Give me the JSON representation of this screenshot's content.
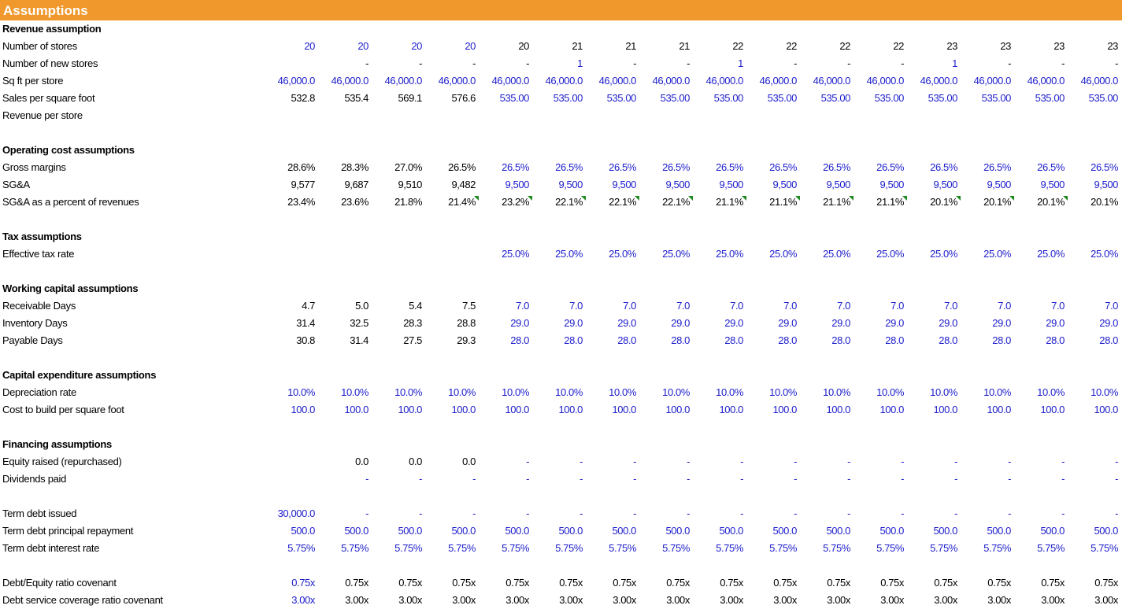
{
  "title": "Assumptions",
  "colors": {
    "header": "#f0982b",
    "input": "#1c1ccc",
    "comment_flag": "#1f8a1f"
  },
  "rows": [
    {
      "label": "Revenue assumption",
      "section": true
    },
    {
      "label": "Number of stores",
      "values": [
        "20",
        "20",
        "20",
        "20",
        "20",
        "21",
        "21",
        "21",
        "22",
        "22",
        "22",
        "22",
        "23",
        "23",
        "23",
        "23"
      ],
      "colors": [
        "b",
        "b",
        "b",
        "b",
        "k",
        "k",
        "k",
        "k",
        "k",
        "k",
        "k",
        "k",
        "k",
        "k",
        "k",
        "k"
      ]
    },
    {
      "label": "Number of new stores",
      "values": [
        "",
        "-",
        "-",
        "-",
        "-",
        "1",
        "-",
        "-",
        "1",
        "-",
        "-",
        "-",
        "1",
        "-",
        "-",
        "-"
      ],
      "colors": [
        "k",
        "k",
        "k",
        "k",
        "k",
        "b",
        "k",
        "k",
        "b",
        "k",
        "k",
        "k",
        "b",
        "k",
        "k",
        "k"
      ]
    },
    {
      "label": "Sq ft per store",
      "values": [
        "46,000.0",
        "46,000.0",
        "46,000.0",
        "46,000.0",
        "46,000.0",
        "46,000.0",
        "46,000.0",
        "46,000.0",
        "46,000.0",
        "46,000.0",
        "46,000.0",
        "46,000.0",
        "46,000.0",
        "46,000.0",
        "46,000.0",
        "46,000.0"
      ],
      "colors": [
        "b",
        "b",
        "b",
        "b",
        "b",
        "b",
        "b",
        "b",
        "b",
        "b",
        "b",
        "b",
        "b",
        "b",
        "b",
        "b"
      ]
    },
    {
      "label": "Sales per square foot",
      "values": [
        "532.8",
        "535.4",
        "569.1",
        "576.6",
        "535.00",
        "535.00",
        "535.00",
        "535.00",
        "535.00",
        "535.00",
        "535.00",
        "535.00",
        "535.00",
        "535.00",
        "535.00",
        "535.00"
      ],
      "colors": [
        "k",
        "k",
        "k",
        "k",
        "b",
        "b",
        "b",
        "b",
        "b",
        "b",
        "b",
        "b",
        "b",
        "b",
        "b",
        "b"
      ]
    },
    {
      "label": "Revenue per store"
    },
    {
      "label": ""
    },
    {
      "label": "Operating cost assumptions",
      "section": true
    },
    {
      "label": "Gross margins",
      "values": [
        "28.6%",
        "28.3%",
        "27.0%",
        "26.5%",
        "26.5%",
        "26.5%",
        "26.5%",
        "26.5%",
        "26.5%",
        "26.5%",
        "26.5%",
        "26.5%",
        "26.5%",
        "26.5%",
        "26.5%",
        "26.5%"
      ],
      "colors": [
        "k",
        "k",
        "k",
        "k",
        "b",
        "b",
        "b",
        "b",
        "b",
        "b",
        "b",
        "b",
        "b",
        "b",
        "b",
        "b"
      ]
    },
    {
      "label": "SG&A",
      "values": [
        "9,577",
        "9,687",
        "9,510",
        "9,482",
        "9,500",
        "9,500",
        "9,500",
        "9,500",
        "9,500",
        "9,500",
        "9,500",
        "9,500",
        "9,500",
        "9,500",
        "9,500",
        "9,500"
      ],
      "colors": [
        "k",
        "k",
        "k",
        "k",
        "b",
        "b",
        "b",
        "b",
        "b",
        "b",
        "b",
        "b",
        "b",
        "b",
        "b",
        "b"
      ]
    },
    {
      "label": "SG&A as a percent of revenues",
      "values": [
        "23.4%",
        "23.6%",
        "21.8%",
        "21.4%",
        "23.2%",
        "22.1%",
        "22.1%",
        "22.1%",
        "21.1%",
        "21.1%",
        "21.1%",
        "21.1%",
        "20.1%",
        "20.1%",
        "20.1%",
        "20.1%"
      ],
      "colors": [
        "k",
        "k",
        "k",
        "k",
        "k",
        "k",
        "k",
        "k",
        "k",
        "k",
        "k",
        "k",
        "k",
        "k",
        "k",
        "k"
      ],
      "flags": [
        false,
        false,
        false,
        true,
        true,
        true,
        true,
        true,
        true,
        true,
        true,
        true,
        true,
        true,
        true,
        false
      ]
    },
    {
      "label": ""
    },
    {
      "label": "Tax assumptions",
      "section": true
    },
    {
      "label": "Effective tax rate",
      "values": [
        "",
        "",
        "",
        "",
        "25.0%",
        "25.0%",
        "25.0%",
        "25.0%",
        "25.0%",
        "25.0%",
        "25.0%",
        "25.0%",
        "25.0%",
        "25.0%",
        "25.0%",
        "25.0%"
      ],
      "colors": [
        "b",
        "b",
        "b",
        "b",
        "b",
        "b",
        "b",
        "b",
        "b",
        "b",
        "b",
        "b",
        "b",
        "b",
        "b",
        "b"
      ]
    },
    {
      "label": ""
    },
    {
      "label": "Working capital assumptions",
      "section": true
    },
    {
      "label": "Receivable Days",
      "values": [
        "4.7",
        "5.0",
        "5.4",
        "7.5",
        "7.0",
        "7.0",
        "7.0",
        "7.0",
        "7.0",
        "7.0",
        "7.0",
        "7.0",
        "7.0",
        "7.0",
        "7.0",
        "7.0"
      ],
      "colors": [
        "k",
        "k",
        "k",
        "k",
        "b",
        "b",
        "b",
        "b",
        "b",
        "b",
        "b",
        "b",
        "b",
        "b",
        "b",
        "b"
      ]
    },
    {
      "label": "Inventory Days",
      "values": [
        "31.4",
        "32.5",
        "28.3",
        "28.8",
        "29.0",
        "29.0",
        "29.0",
        "29.0",
        "29.0",
        "29.0",
        "29.0",
        "29.0",
        "29.0",
        "29.0",
        "29.0",
        "29.0"
      ],
      "colors": [
        "k",
        "k",
        "k",
        "k",
        "b",
        "b",
        "b",
        "b",
        "b",
        "b",
        "b",
        "b",
        "b",
        "b",
        "b",
        "b"
      ]
    },
    {
      "label": "Payable Days",
      "values": [
        "30.8",
        "31.4",
        "27.5",
        "29.3",
        "28.0",
        "28.0",
        "28.0",
        "28.0",
        "28.0",
        "28.0",
        "28.0",
        "28.0",
        "28.0",
        "28.0",
        "28.0",
        "28.0"
      ],
      "colors": [
        "k",
        "k",
        "k",
        "k",
        "b",
        "b",
        "b",
        "b",
        "b",
        "b",
        "b",
        "b",
        "b",
        "b",
        "b",
        "b"
      ]
    },
    {
      "label": ""
    },
    {
      "label": "Capital expenditure assumptions",
      "section": true
    },
    {
      "label": "Depreciation rate",
      "values": [
        "10.0%",
        "10.0%",
        "10.0%",
        "10.0%",
        "10.0%",
        "10.0%",
        "10.0%",
        "10.0%",
        "10.0%",
        "10.0%",
        "10.0%",
        "10.0%",
        "10.0%",
        "10.0%",
        "10.0%",
        "10.0%"
      ],
      "colors": [
        "b",
        "b",
        "b",
        "b",
        "b",
        "b",
        "b",
        "b",
        "b",
        "b",
        "b",
        "b",
        "b",
        "b",
        "b",
        "b"
      ]
    },
    {
      "label": "Cost to build per square foot",
      "values": [
        "100.0",
        "100.0",
        "100.0",
        "100.0",
        "100.0",
        "100.0",
        "100.0",
        "100.0",
        "100.0",
        "100.0",
        "100.0",
        "100.0",
        "100.0",
        "100.0",
        "100.0",
        "100.0"
      ],
      "colors": [
        "b",
        "b",
        "b",
        "b",
        "b",
        "b",
        "b",
        "b",
        "b",
        "b",
        "b",
        "b",
        "b",
        "b",
        "b",
        "b"
      ]
    },
    {
      "label": ""
    },
    {
      "label": "Financing assumptions",
      "section": true
    },
    {
      "label": "Equity raised (repurchased)",
      "values": [
        "",
        "0.0",
        "0.0",
        "0.0",
        "-",
        "-",
        "-",
        "-",
        "-",
        "-",
        "-",
        "-",
        "-",
        "-",
        "-",
        "-"
      ],
      "colors": [
        "k",
        "k",
        "k",
        "k",
        "b",
        "b",
        "b",
        "b",
        "b",
        "b",
        "b",
        "b",
        "b",
        "b",
        "b",
        "b"
      ]
    },
    {
      "label": "Dividends paid",
      "values": [
        "",
        "-",
        "-",
        "-",
        "-",
        "-",
        "-",
        "-",
        "-",
        "-",
        "-",
        "-",
        "-",
        "-",
        "-",
        "-"
      ],
      "colors": [
        "b",
        "b",
        "b",
        "b",
        "b",
        "b",
        "b",
        "b",
        "b",
        "b",
        "b",
        "b",
        "b",
        "b",
        "b",
        "b"
      ]
    },
    {
      "label": ""
    },
    {
      "label": "Term debt issued",
      "values": [
        "30,000.0",
        "-",
        "-",
        "-",
        "-",
        "-",
        "-",
        "-",
        "-",
        "-",
        "-",
        "-",
        "-",
        "-",
        "-",
        "-"
      ],
      "colors": [
        "b",
        "b",
        "b",
        "b",
        "b",
        "b",
        "b",
        "b",
        "b",
        "b",
        "b",
        "b",
        "b",
        "b",
        "b",
        "b"
      ]
    },
    {
      "label": "Term debt principal repayment",
      "values": [
        "500.0",
        "500.0",
        "500.0",
        "500.0",
        "500.0",
        "500.0",
        "500.0",
        "500.0",
        "500.0",
        "500.0",
        "500.0",
        "500.0",
        "500.0",
        "500.0",
        "500.0",
        "500.0"
      ],
      "colors": [
        "b",
        "b",
        "b",
        "b",
        "b",
        "b",
        "b",
        "b",
        "b",
        "b",
        "b",
        "b",
        "b",
        "b",
        "b",
        "b"
      ]
    },
    {
      "label": "Term debt interest rate",
      "values": [
        "5.75%",
        "5.75%",
        "5.75%",
        "5.75%",
        "5.75%",
        "5.75%",
        "5.75%",
        "5.75%",
        "5.75%",
        "5.75%",
        "5.75%",
        "5.75%",
        "5.75%",
        "5.75%",
        "5.75%",
        "5.75%"
      ],
      "colors": [
        "b",
        "b",
        "b",
        "b",
        "b",
        "b",
        "b",
        "b",
        "b",
        "b",
        "b",
        "b",
        "b",
        "b",
        "b",
        "b"
      ]
    },
    {
      "label": ""
    },
    {
      "label": "Debt/Equity ratio covenant",
      "values": [
        "0.75x",
        "0.75x",
        "0.75x",
        "0.75x",
        "0.75x",
        "0.75x",
        "0.75x",
        "0.75x",
        "0.75x",
        "0.75x",
        "0.75x",
        "0.75x",
        "0.75x",
        "0.75x",
        "0.75x",
        "0.75x"
      ],
      "colors": [
        "b",
        "k",
        "k",
        "k",
        "k",
        "k",
        "k",
        "k",
        "k",
        "k",
        "k",
        "k",
        "k",
        "k",
        "k",
        "k"
      ]
    },
    {
      "label": "Debt service coverage ratio covenant",
      "values": [
        "3.00x",
        "3.00x",
        "3.00x",
        "3.00x",
        "3.00x",
        "3.00x",
        "3.00x",
        "3.00x",
        "3.00x",
        "3.00x",
        "3.00x",
        "3.00x",
        "3.00x",
        "3.00x",
        "3.00x",
        "3.00x"
      ],
      "colors": [
        "b",
        "k",
        "k",
        "k",
        "k",
        "k",
        "k",
        "k",
        "k",
        "k",
        "k",
        "k",
        "k",
        "k",
        "k",
        "k"
      ]
    }
  ]
}
